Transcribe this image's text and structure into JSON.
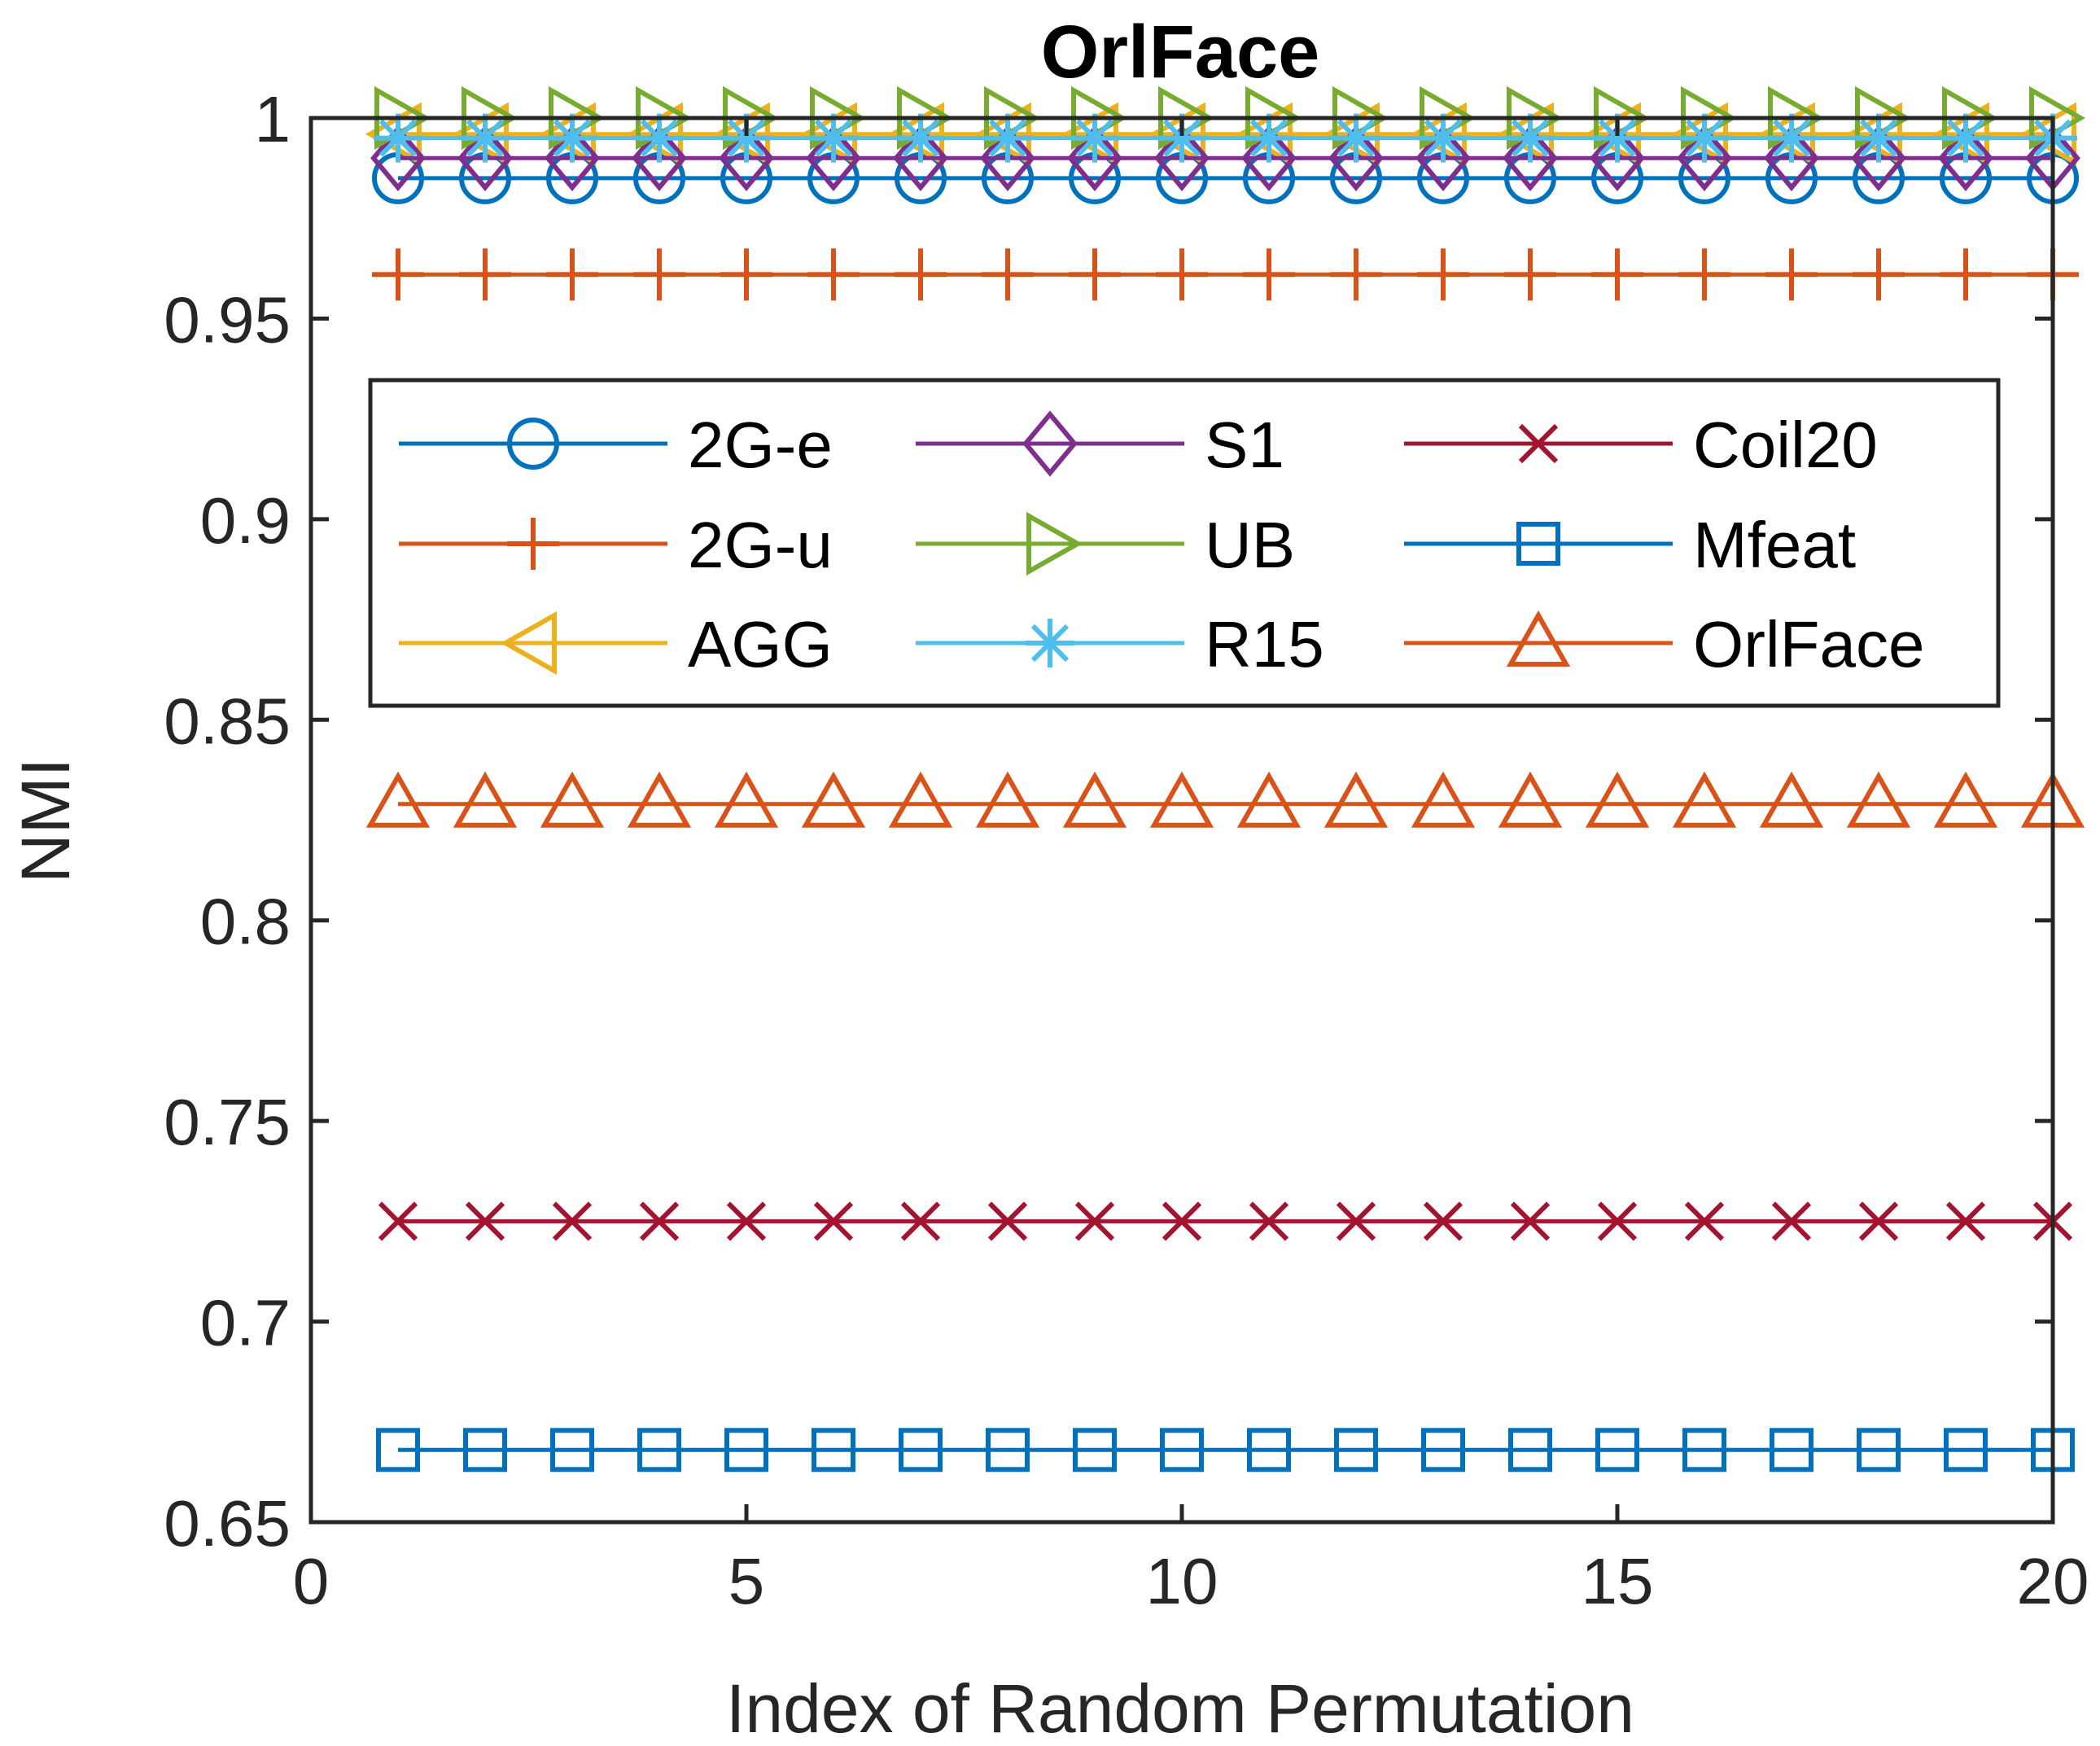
{
  "chart_data": {
    "type": "line",
    "title": "OrlFace",
    "xlabel": "Index of Random Permutation",
    "ylabel": "NMI",
    "xlim": [
      0,
      20
    ],
    "ylim": [
      0.65,
      1
    ],
    "xticks": [
      0,
      5,
      10,
      15,
      20
    ],
    "xtick_labels": [
      "0",
      "5",
      "10",
      "15",
      "20"
    ],
    "yticks": [
      0.65,
      0.7,
      0.75,
      0.8,
      0.85,
      0.9,
      0.95,
      1
    ],
    "ytick_labels": [
      "0.65",
      "0.7",
      "0.75",
      "0.8",
      "0.85",
      "0.9",
      "0.95",
      "1"
    ],
    "x": [
      1,
      2,
      3,
      4,
      5,
      6,
      7,
      8,
      9,
      10,
      11,
      12,
      13,
      14,
      15,
      16,
      17,
      18,
      19,
      20
    ],
    "legend_position": "upper-center",
    "series": [
      {
        "name": "2G-e",
        "marker": "circle",
        "color": "#0072BD",
        "value": 0.985
      },
      {
        "name": "2G-u",
        "marker": "plus",
        "color": "#D95319",
        "value": 0.961
      },
      {
        "name": "AGG",
        "marker": "triangle-left",
        "color": "#EDB120",
        "value": 0.996
      },
      {
        "name": "S1",
        "marker": "diamond",
        "color": "#7E2F8E",
        "value": 0.99
      },
      {
        "name": "UB",
        "marker": "triangle-right",
        "color": "#77AC30",
        "value": 1.0
      },
      {
        "name": "R15",
        "marker": "asterisk",
        "color": "#4DBEEE",
        "value": 0.995
      },
      {
        "name": "Coil20",
        "marker": "x",
        "color": "#A2142F",
        "value": 0.725
      },
      {
        "name": "Mfeat",
        "marker": "square",
        "color": "#0072BD",
        "value": 0.668
      },
      {
        "name": "OrlFace",
        "marker": "triangle-up",
        "color": "#D95319",
        "value": 0.829
      }
    ]
  }
}
